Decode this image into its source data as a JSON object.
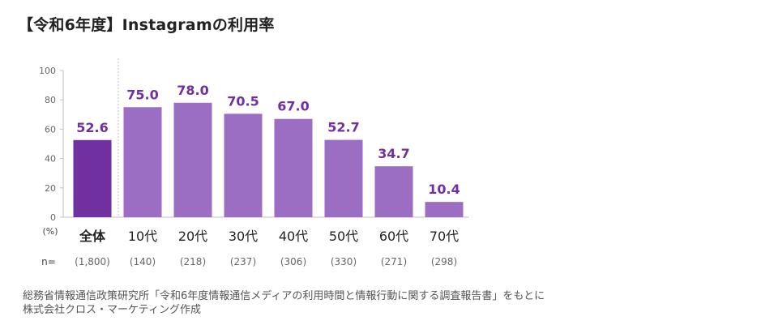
{
  "title": "【令和6年度】Instagramの利用率",
  "chart_data": {
    "type": "bar",
    "title": "【令和6年度】Instagramの利用率",
    "ylabel": "(%)",
    "xlabel": "",
    "ylim": [
      0,
      100
    ],
    "yticks": [
      0,
      20,
      40,
      60,
      80,
      100
    ],
    "grid": false,
    "categories": [
      "全体",
      "10代",
      "20代",
      "30代",
      "40代",
      "50代",
      "60代",
      "70代"
    ],
    "values": [
      52.6,
      75.0,
      78.0,
      70.5,
      67.0,
      52.7,
      34.7,
      10.4
    ],
    "value_labels": [
      "52.6",
      "75.0",
      "78.0",
      "70.5",
      "67.0",
      "52.7",
      "34.7",
      "10.4"
    ],
    "n_label": "n=",
    "n_values": [
      "(1,800)",
      "(140)",
      "(218)",
      "(237)",
      "(306)",
      "(330)",
      "(271)",
      "(298)"
    ]
  },
  "colors": {
    "overall_bar": "#7030a0",
    "age_bar": "#9b6dc3",
    "value_label": "#7030a0",
    "axis": "#bfbfbf",
    "tick_text": "#666666"
  },
  "source": {
    "line1": "総務省情報通信政策研究所「令和6年度情報通信メディアの利用時間と情報行動に関する調査報告書」をもとに",
    "line2": "株式会社クロス・マーケティング作成"
  }
}
